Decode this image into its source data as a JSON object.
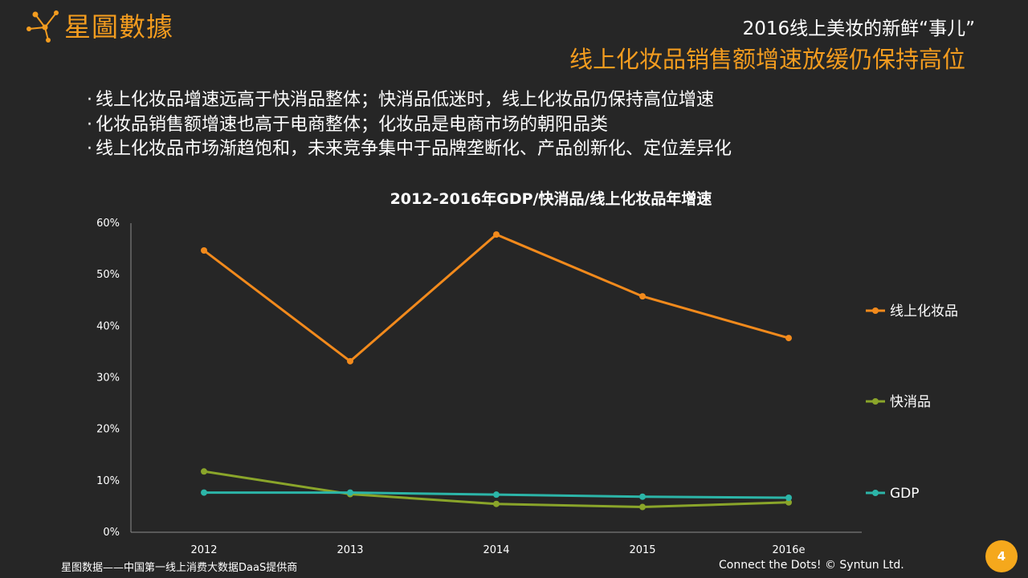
{
  "brand": {
    "logo_text": "星圖數據",
    "accent": "#f39c1f"
  },
  "header": {
    "small_title": "2016线上美妆的新鲜“事儿”",
    "main_title": "线上化妆品销售额增速放缓仍保持高位"
  },
  "bullets": [
    "线上化妆品增速远高于快消品整体；快消品低迷时，线上化妆品仍保持高位增速",
    "化妆品销售额增速也高于电商整体；化妆品是电商市场的朝阳品类",
    "线上化妆品市场渐趋饱和，未来竞争集中于品牌垄断化、产品创新化、定位差异化"
  ],
  "chart_data": {
    "type": "line",
    "title": "2012-2016年GDP/快消品/线上化妆品年增速",
    "categories": [
      "2012",
      "2013",
      "2014",
      "2015",
      "2016e"
    ],
    "yticks": [
      "0%",
      "10%",
      "20%",
      "30%",
      "40%",
      "50%",
      "60%"
    ],
    "ylim": [
      0,
      60
    ],
    "legend_position": "right",
    "grid": false,
    "series": [
      {
        "name": "线上化妆品",
        "values": [
          54.7,
          33.2,
          57.8,
          45.8,
          37.7
        ],
        "color": "#f28a1c"
      },
      {
        "name": "快消品",
        "values": [
          11.8,
          7.4,
          5.5,
          4.9,
          5.8
        ],
        "color": "#8aa52a"
      },
      {
        "name": "GDP",
        "values": [
          7.7,
          7.7,
          7.3,
          6.9,
          6.7
        ],
        "color": "#2cb5a8"
      }
    ]
  },
  "footer": {
    "left": "星图数据——中国第一线上消费大数据DaaS提供商",
    "right": "Connect the Dots!  © Syntun Ltd.",
    "page": "4"
  }
}
